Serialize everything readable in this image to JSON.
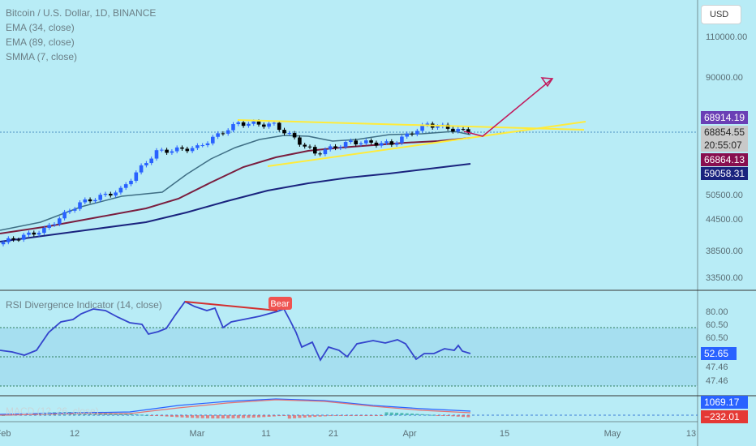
{
  "header": {
    "symbol_line": "Bitcoin / U.S. Dollar, 1D, BINANCE",
    "indicators": [
      "EMA (34, close)",
      "EMA (89, close)",
      "SMMA (7, close)"
    ],
    "rsi_title": "RSI Divergence Indicator (14, close)",
    "macd_title": "MACD (12, 26, close)"
  },
  "currency_button": "USD",
  "colors": {
    "bg": "#b8ecf6",
    "up_candle": "#2962ff",
    "down_candle": "#000000",
    "ema34": "#3f6f85",
    "ema89": "#7a1d3e",
    "smma7": "#1a237e",
    "trendline": "#ffeb3b",
    "projection": "#c2185b",
    "rsi_line": "#3344cc",
    "divergence": "#d32f2f"
  },
  "price_axis": {
    "ticks": [
      "110000.00",
      "90000.00",
      "50500.00",
      "44500.00",
      "38500.00",
      "33500.00"
    ]
  },
  "badges": {
    "high": "68914.19",
    "last": "68854.55",
    "countdown": "20:55:07",
    "ema": "66864.13",
    "smma": "59058.31"
  },
  "rsi_axis": {
    "labels": [
      "80.00",
      "60.50",
      "60.50",
      "47.46",
      "47.46"
    ],
    "current": "52.65",
    "bear_label": "Bear"
  },
  "macd_axis": {
    "macd_value": "1069.17",
    "signal_value": "−232.01"
  },
  "time_axis": [
    "Feb",
    "12",
    "Mar",
    "11",
    "21",
    "Apr",
    "15",
    "May",
    "13"
  ],
  "chart_data": {
    "type": "candlestick",
    "symbol": "Bitcoin / U.S. Dollar",
    "interval": "1D",
    "exchange": "BINANCE",
    "price_scale": "log",
    "y_range": [
      33500,
      110000
    ],
    "key_prices": {
      "high": 68914.19,
      "last": 68854.55,
      "ema": 66864.13,
      "smma": 59058.31
    },
    "approx_close_path": [
      {
        "date": "Jan 24",
        "close": 40000
      },
      {
        "date": "Feb 05",
        "close": 42500
      },
      {
        "date": "Feb 12",
        "close": 48500
      },
      {
        "date": "Feb 20",
        "close": 51700
      },
      {
        "date": "Feb 28",
        "close": 62500
      },
      {
        "date": "Mar 05",
        "close": 63800
      },
      {
        "date": "Mar 11",
        "close": 72000
      },
      {
        "date": "Mar 14",
        "close": 71400
      },
      {
        "date": "Mar 19",
        "close": 62000
      },
      {
        "date": "Mar 21",
        "close": 65600
      },
      {
        "date": "Apr 01",
        "close": 65000
      },
      {
        "date": "Apr 08",
        "close": 71600
      },
      {
        "date": "Apr 10",
        "close": 68854
      }
    ],
    "rsi": {
      "levels": [
        80,
        60.5,
        47.46
      ],
      "current": 52.65,
      "divergence": "Bear"
    },
    "macd": {
      "macd": 1069.17,
      "signal": -232.01
    }
  }
}
